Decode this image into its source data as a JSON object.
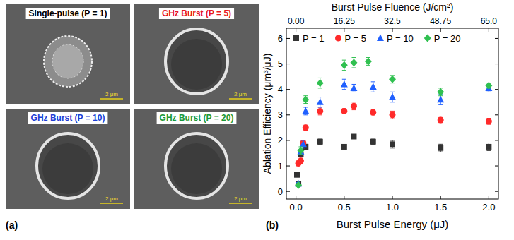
{
  "images": {
    "label": "(a)",
    "panels": [
      {
        "title": "Single-pulse (P = 1)",
        "color": "#000000",
        "scale_bar": "2 μm"
      },
      {
        "title": "GHz Burst (P = 5)",
        "color": "#e8191f",
        "scale_bar": "2 μm"
      },
      {
        "title": "GHz Burst (P = 10)",
        "color": "#1f3fd6",
        "scale_bar": "2 μm"
      },
      {
        "title": "GHz Burst (P = 20)",
        "color": "#1a9a3a",
        "scale_bar": "2 μm"
      }
    ]
  },
  "chart_data": {
    "type": "scatter",
    "annotations": [
      "(b)"
    ],
    "x_label": "Burst Pulse Energy (μJ)",
    "x2_label": "Burst Pulse Fluence (J/cm²)",
    "y_label": "Ablation Efficiency (μm³/μJ)",
    "xlim": [
      -0.1,
      2.1
    ],
    "xticks": [
      {
        "value": 0,
        "label": "0.0"
      },
      0.5,
      {
        "value": 1,
        "label": "1.0"
      },
      1.5,
      {
        "value": 2,
        "label": "2.0"
      }
    ],
    "x2lim": [
      -3.25,
      68.25
    ],
    "x2ticks": [
      {
        "value": 0,
        "label": "0.00"
      },
      16.25,
      32.5,
      48.75,
      {
        "value": 65,
        "label": "65.0"
      }
    ],
    "ylim": [
      -0.3,
      6.4
    ],
    "yticks": [
      0,
      1,
      2,
      3,
      4,
      5,
      6
    ],
    "grid": false,
    "legend": "top",
    "series": [
      {
        "name": "P = 1",
        "color": "#333333",
        "marker": "square",
        "x": [
          0.01,
          0.025,
          0.05,
          0.1,
          0.25,
          0.5,
          0.6,
          0.8,
          1.0,
          1.5,
          2.0
        ],
        "values": [
          0.65,
          0.3,
          1.45,
          1.75,
          1.95,
          1.75,
          2.15,
          1.95,
          1.85,
          1.7,
          1.75
        ],
        "errors": [
          0.08,
          0.05,
          0.1,
          0.1,
          0.1,
          0.08,
          0.08,
          0.1,
          0.15,
          0.15,
          0.15
        ]
      },
      {
        "name": "P = 5",
        "color": "#ff2a2a",
        "marker": "circle",
        "x": [
          0.025,
          0.05,
          0.075,
          0.1,
          0.25,
          0.5,
          0.6,
          0.8,
          1.0,
          1.5,
          2.0
        ],
        "values": [
          1.1,
          1.2,
          1.9,
          2.5,
          3.15,
          3.15,
          3.35,
          3.1,
          3.0,
          2.8,
          2.75
        ],
        "errors": [
          0.1,
          0.1,
          0.1,
          0.1,
          0.15,
          0.1,
          0.15,
          0.1,
          0.15,
          0.1,
          0.12
        ]
      },
      {
        "name": "P = 10",
        "color": "#2060ff",
        "marker": "triangle",
        "x": [
          0.025,
          0.05,
          0.075,
          0.1,
          0.25,
          0.5,
          0.6,
          0.8,
          1.0,
          1.5,
          2.0
        ],
        "values": [
          0.3,
          1.55,
          1.85,
          3.15,
          3.5,
          4.2,
          4.05,
          4.1,
          3.7,
          3.6,
          4.05
        ],
        "errors": [
          0.05,
          0.1,
          0.15,
          0.15,
          0.2,
          0.2,
          0.15,
          0.2,
          0.2,
          0.2,
          0.15
        ]
      },
      {
        "name": "P = 20",
        "color": "#30c050",
        "marker": "diamond",
        "x": [
          0.025,
          0.05,
          0.1,
          0.25,
          0.5,
          0.6,
          0.75,
          1.0,
          1.5,
          2.0
        ],
        "values": [
          0.25,
          1.6,
          3.6,
          4.25,
          4.95,
          5.05,
          5.1,
          4.4,
          3.9,
          4.15
        ],
        "errors": [
          0.05,
          0.15,
          0.15,
          0.2,
          0.2,
          0.2,
          0.15,
          0.15,
          0.15,
          0.1
        ]
      }
    ]
  }
}
